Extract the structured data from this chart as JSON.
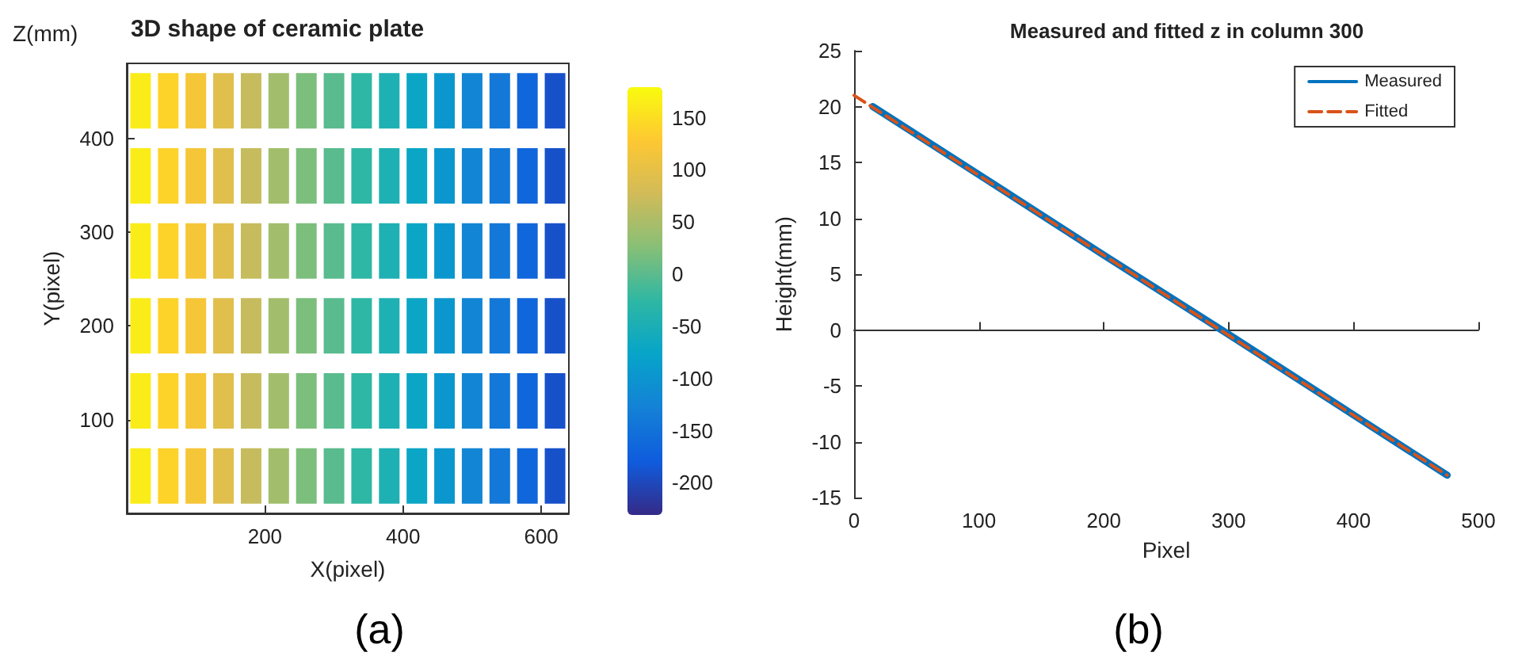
{
  "chart_data": [
    {
      "type": "scatter",
      "title": "3D shape of ceramic plate",
      "xlabel": "X(pixel)",
      "ylabel": "Y(pixel)",
      "annotations": [
        "Z(mm)",
        "(a)"
      ],
      "marker": "square",
      "x": [
        20,
        60,
        100,
        140,
        180,
        220,
        260,
        300,
        340,
        380,
        420,
        460,
        500,
        540,
        580,
        620,
        20,
        60,
        100,
        140,
        180,
        220,
        260,
        300,
        340,
        380,
        420,
        460,
        500,
        540,
        580,
        620,
        20,
        60,
        100,
        140,
        180,
        220,
        260,
        300,
        340,
        380,
        420,
        460,
        500,
        540,
        580,
        620,
        20,
        60,
        100,
        140,
        180,
        220,
        260,
        300,
        340,
        380,
        420,
        460,
        500,
        540,
        580,
        620,
        20,
        60,
        100,
        140,
        180,
        220,
        260,
        300,
        340,
        380,
        420,
        460,
        500,
        540,
        580,
        620,
        20,
        60,
        100,
        140,
        180,
        220,
        260,
        300,
        340,
        380,
        420,
        460,
        500,
        540,
        580,
        620
      ],
      "values": [
        40,
        40,
        40,
        40,
        40,
        40,
        40,
        40,
        40,
        40,
        40,
        40,
        40,
        40,
        40,
        40,
        120,
        120,
        120,
        120,
        120,
        120,
        120,
        120,
        120,
        120,
        120,
        120,
        120,
        120,
        120,
        120,
        200,
        200,
        200,
        200,
        200,
        200,
        200,
        200,
        200,
        200,
        200,
        200,
        200,
        200,
        200,
        200,
        280,
        280,
        280,
        280,
        280,
        280,
        280,
        280,
        280,
        280,
        280,
        280,
        280,
        280,
        280,
        280,
        360,
        360,
        360,
        360,
        360,
        360,
        360,
        360,
        360,
        360,
        360,
        360,
        360,
        360,
        360,
        360,
        440,
        440,
        440,
        440,
        440,
        440,
        440,
        440,
        440,
        440,
        440,
        440,
        440,
        440,
        440,
        440
      ],
      "cvalues": [
        165,
        140,
        120,
        95,
        70,
        45,
        20,
        0,
        -25,
        -45,
        -70,
        -95,
        -120,
        -140,
        -165,
        -190,
        165,
        140,
        120,
        95,
        70,
        45,
        20,
        0,
        -25,
        -45,
        -70,
        -95,
        -120,
        -140,
        -165,
        -190,
        165,
        140,
        120,
        95,
        70,
        45,
        20,
        0,
        -25,
        -45,
        -70,
        -95,
        -120,
        -140,
        -165,
        -190,
        165,
        140,
        120,
        95,
        70,
        45,
        20,
        0,
        -25,
        -45,
        -70,
        -95,
        -120,
        -140,
        -165,
        -190,
        165,
        140,
        120,
        95,
        70,
        45,
        20,
        0,
        -25,
        -45,
        -70,
        -95,
        -120,
        -140,
        -165,
        -190,
        165,
        140,
        120,
        95,
        70,
        45,
        20,
        0,
        -25,
        -45,
        -70,
        -95,
        -120,
        -140,
        -165,
        -190
      ],
      "xlim": [
        0,
        640
      ],
      "xticks": [
        200,
        400,
        600
      ],
      "ylim": [
        0,
        480
      ],
      "yticks": [
        100,
        200,
        300,
        400
      ],
      "clim": [
        -230,
        180
      ],
      "cticks": [
        -200,
        -150,
        -100,
        -50,
        0,
        50,
        100,
        150
      ]
    },
    {
      "type": "line",
      "title": "Measured and fitted z in column 300",
      "xlabel": "Pixel",
      "ylabel": "Height(mm)",
      "annotations": [
        "(b)"
      ],
      "series": [
        {
          "name": "Measured",
          "color": "#0072bd",
          "line_style": "solid",
          "x": [
            15,
            100,
            200,
            300,
            400,
            475
          ],
          "values": [
            20,
            13.9,
            6.7,
            -0.4,
            -7.6,
            -13
          ]
        },
        {
          "name": "Fitted",
          "color": "#d95319",
          "line_style": "dashed",
          "x": [
            0,
            475
          ],
          "values": [
            21,
            -13
          ]
        }
      ],
      "xlim": [
        0,
        500
      ],
      "xticks": [
        0,
        100,
        200,
        300,
        400,
        500
      ],
      "ylim": [
        -15,
        25
      ],
      "yticks": [
        -15,
        -10,
        -5,
        0,
        5,
        10,
        15,
        20,
        25
      ],
      "legend": "top right",
      "marker": "none"
    }
  ]
}
